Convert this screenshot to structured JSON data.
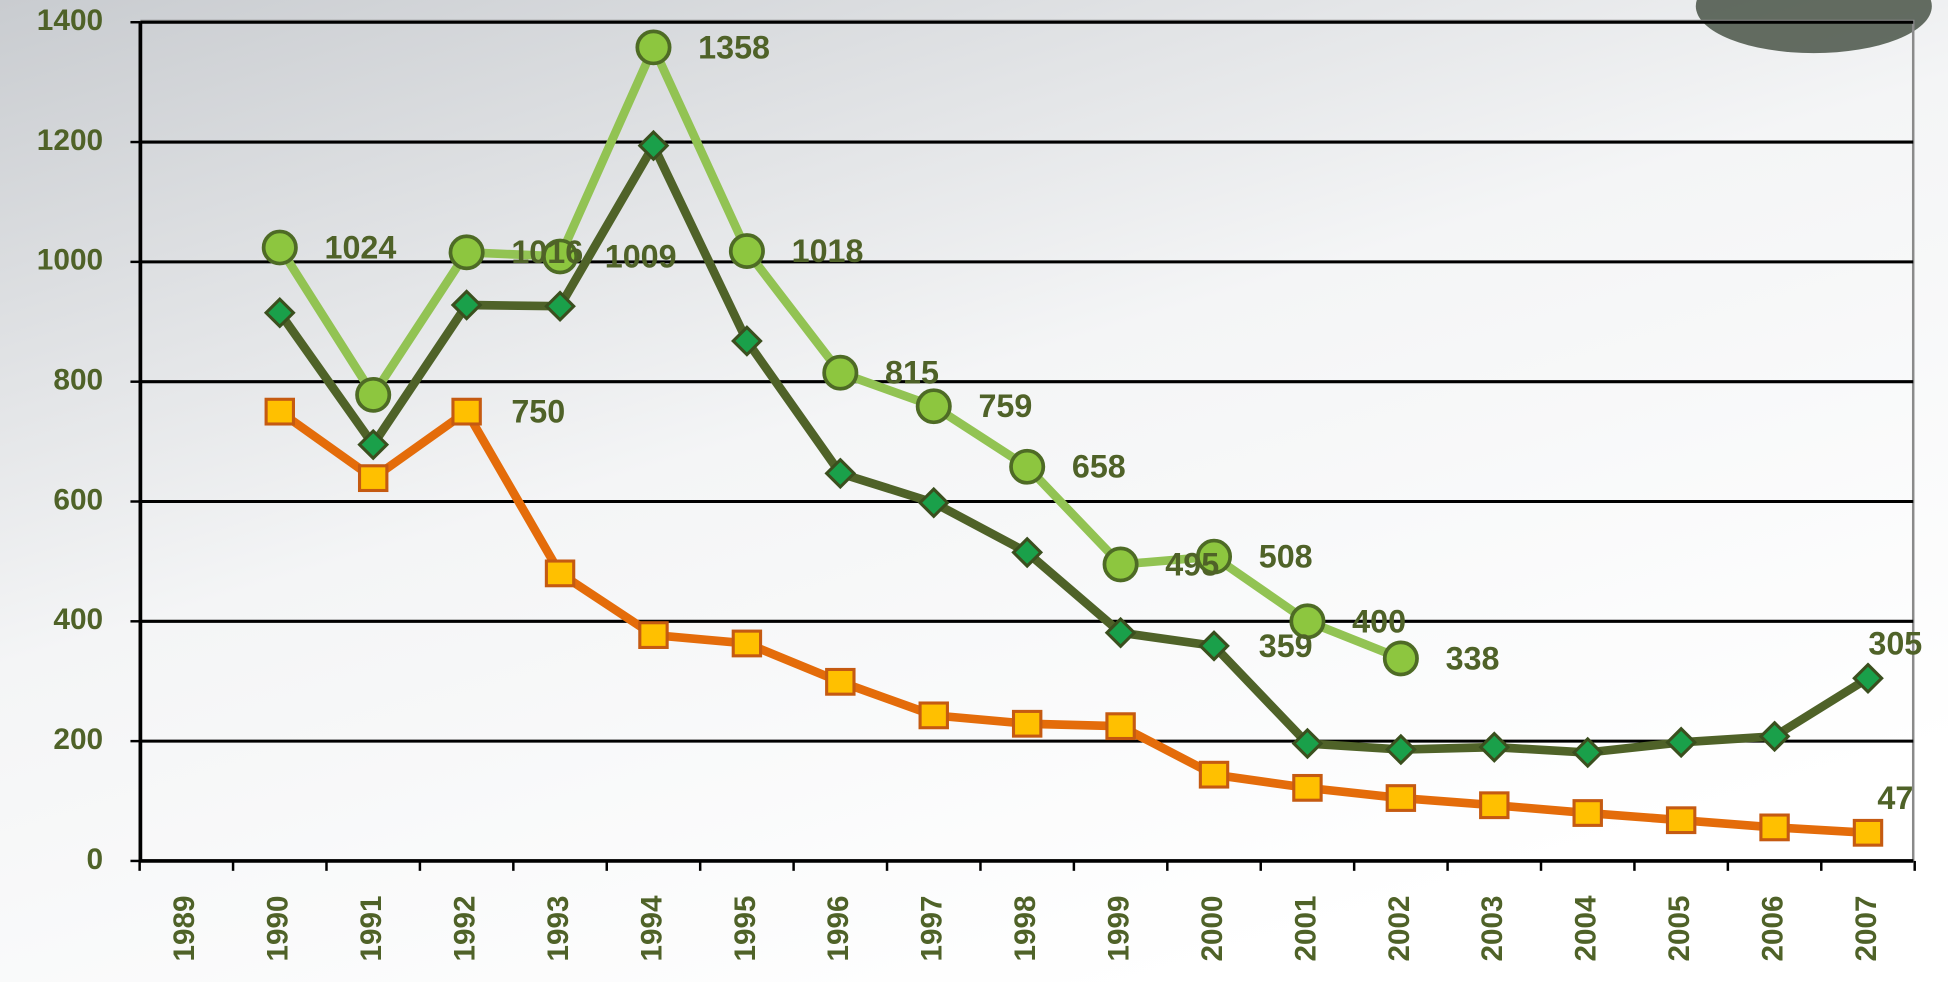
{
  "chart_data": {
    "type": "line",
    "categories": [
      "1989",
      "1990",
      "1991",
      "1992",
      "1993",
      "1994",
      "1995",
      "1996",
      "1997",
      "1998",
      "1999",
      "2000",
      "2001",
      "2002",
      "2003",
      "2004",
      "2005",
      "2006",
      "2007"
    ],
    "series": [
      {
        "color": "#92c353",
        "marker": "circle",
        "values": [
          null,
          1024,
          778,
          1016,
          1009,
          1358,
          1018,
          815,
          759,
          658,
          495,
          508,
          400,
          338,
          null,
          null,
          null,
          null,
          null
        ],
        "value_labels": [
          null,
          "1024",
          null,
          "1016",
          "1009",
          "1358",
          "1018",
          "815",
          "759",
          "658",
          "495",
          "508",
          "400",
          "338",
          null,
          null,
          null,
          null,
          null
        ]
      },
      {
        "color": "#4f6228",
        "marker": "diamond",
        "values": [
          null,
          915,
          695,
          928,
          926,
          1194,
          868,
          647,
          598,
          515,
          381,
          359,
          196,
          186,
          190,
          181,
          198,
          208,
          305
        ],
        "value_labels": [
          null,
          null,
          null,
          null,
          null,
          null,
          null,
          null,
          null,
          null,
          null,
          "359",
          null,
          null,
          null,
          null,
          null,
          null,
          "305"
        ]
      },
      {
        "color": "#e46c0a",
        "marker": "square",
        "values": [
          null,
          750,
          639,
          750,
          480,
          377,
          363,
          299,
          243,
          229,
          225,
          144,
          122,
          105,
          93,
          80,
          68,
          56,
          47
        ],
        "value_labels": [
          null,
          null,
          null,
          "750",
          null,
          null,
          null,
          null,
          null,
          null,
          null,
          null,
          null,
          null,
          null,
          null,
          null,
          null,
          "47"
        ]
      }
    ],
    "ylim": [
      0,
      1400
    ],
    "yticks": [
      0,
      200,
      400,
      600,
      800,
      1000,
      1200,
      1400
    ],
    "grid": true
  }
}
